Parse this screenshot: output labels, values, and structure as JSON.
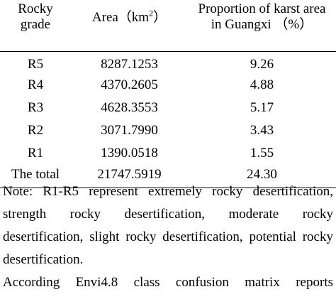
{
  "table": {
    "headers": {
      "col1": "Rocky grade",
      "col2_prefix": "Area（km",
      "col2_exp": "2",
      "col2_suffix": "）",
      "col3": "Proportion of karst area in Guangxi （%）"
    },
    "rows": [
      {
        "grade": "R5",
        "area": "8287.1253",
        "proportion": "9.26"
      },
      {
        "grade": "R4",
        "area": "4370.2605",
        "proportion": "4.88"
      },
      {
        "grade": "R3",
        "area": "4628.3553",
        "proportion": "5.17"
      },
      {
        "grade": "R2",
        "area": "3071.7990",
        "proportion": "3.43"
      },
      {
        "grade": "R1",
        "area": "1390.0518",
        "proportion": "1.55"
      },
      {
        "grade": "The total",
        "area": "21747.5919",
        "proportion": "24.30"
      }
    ]
  },
  "note": {
    "text": "Note: R1-R5 represent extremely rocky desertification, strength rocky desertification, moderate rocky desertification, slight rocky desertification, potential rocky desertification.",
    "continuation": "According Envi4.8 class confusion matrix reports"
  }
}
